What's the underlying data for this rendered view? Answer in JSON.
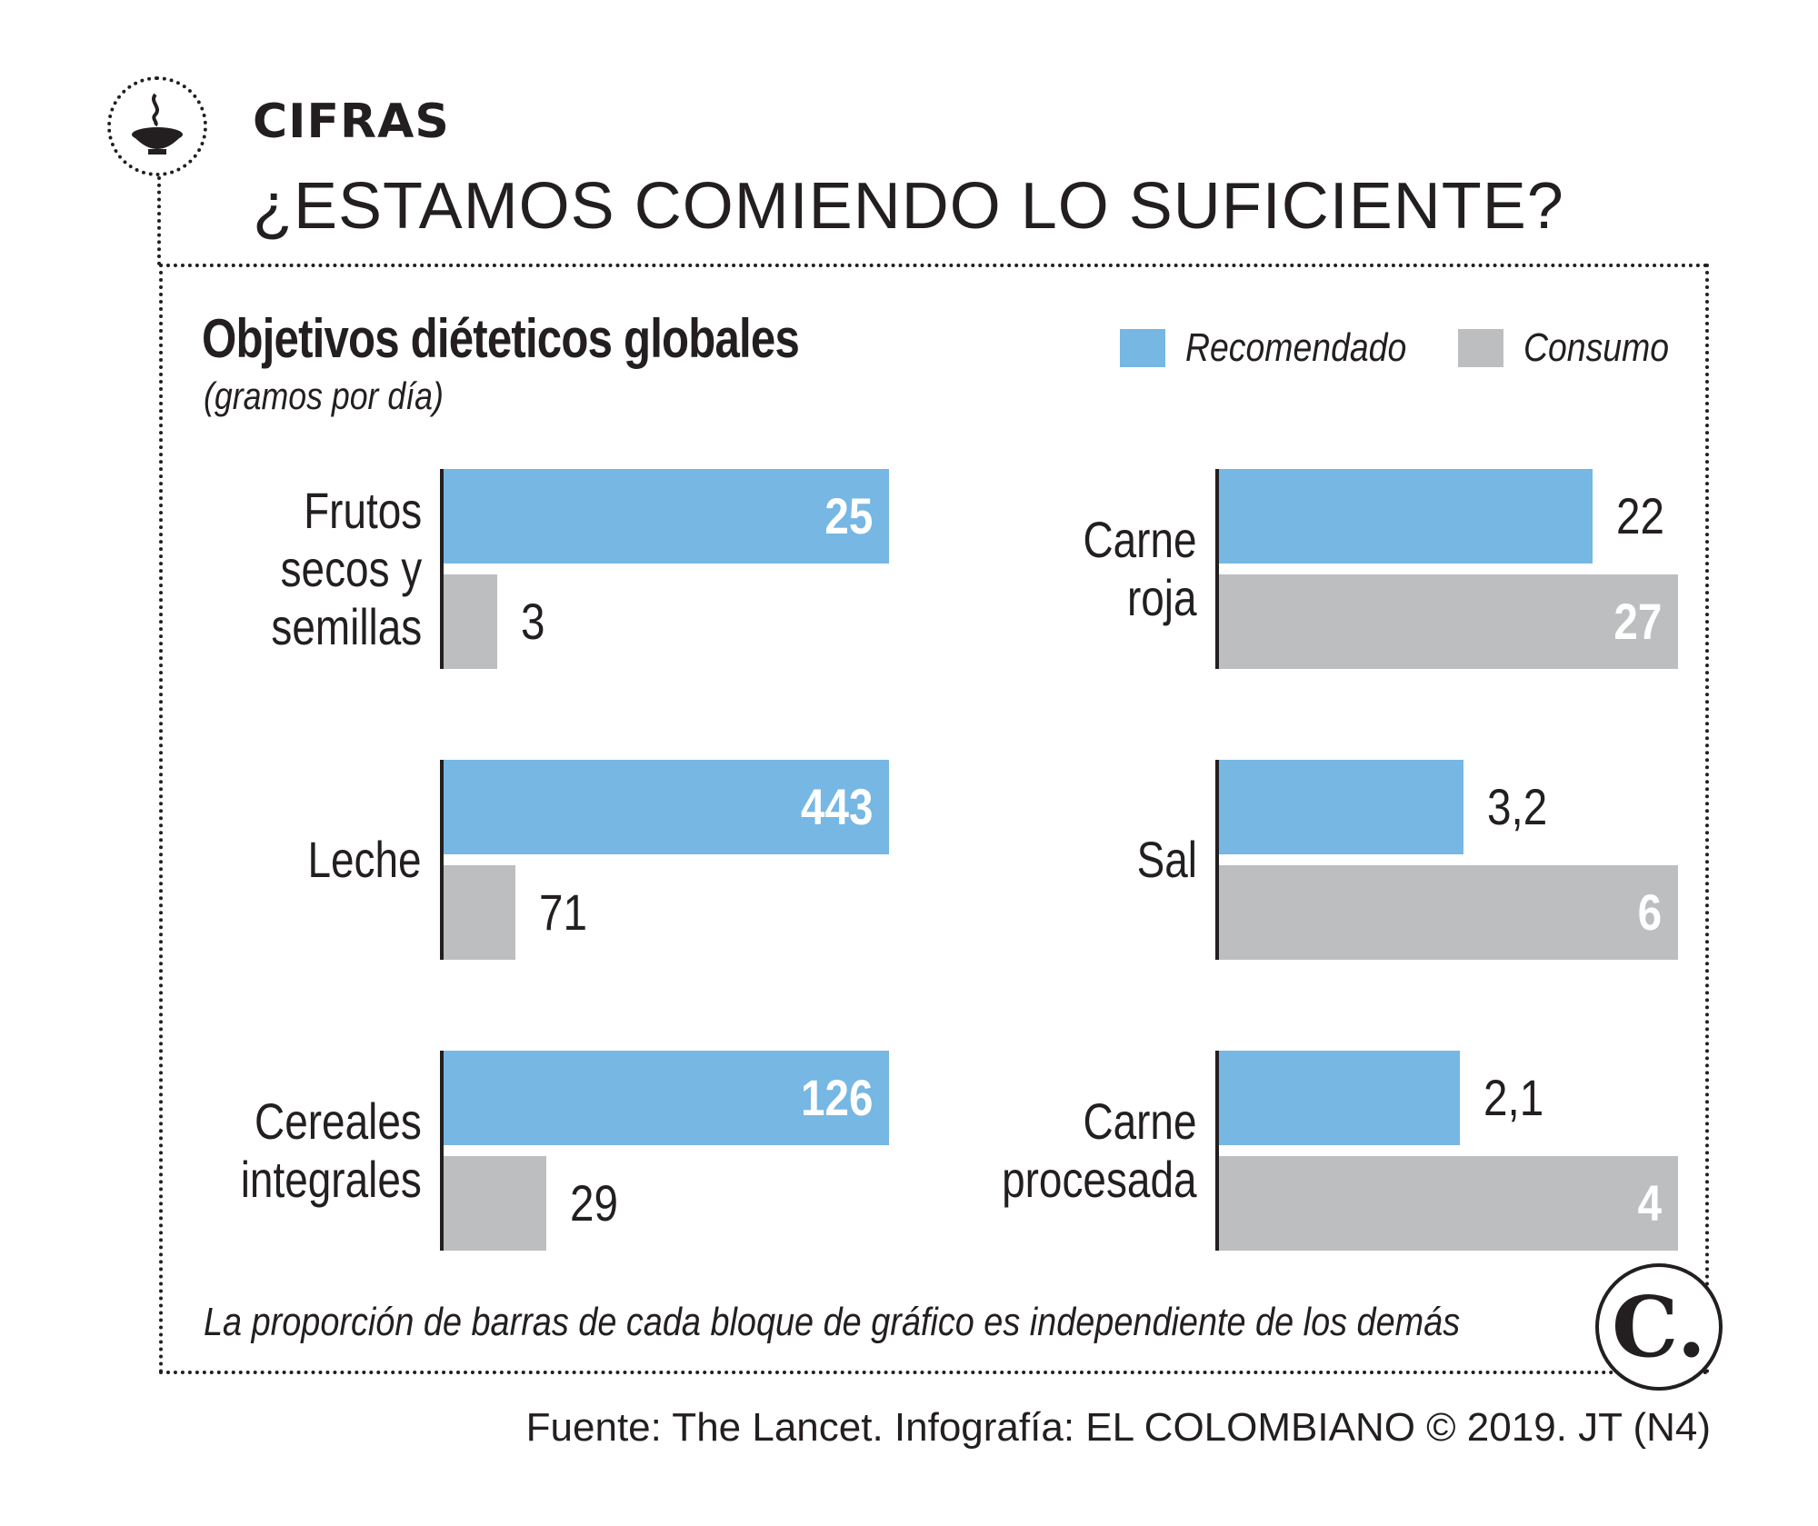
{
  "header": {
    "section_label": "CIFRAS",
    "title": "¿ESTAMOS COMIENDO LO SUFICIENTE?"
  },
  "chart_data": {
    "type": "bar",
    "orientation": "horizontal",
    "title": "Objetivos diéteticos globales",
    "subtitle": "(gramos por día)",
    "unit": "gramos por día",
    "legend": [
      {
        "name": "Recomendado",
        "color": "#76b7e3"
      },
      {
        "name": "Consumo",
        "color": "#bcbec0"
      }
    ],
    "panels": [
      {
        "category": "Frutos secos y semillas",
        "label_lines": "Frutos\nsecos y\nsemillas",
        "recomendado": 25,
        "consumo": 3,
        "recomendado_label": "25",
        "consumo_label": "3"
      },
      {
        "category": "Carne roja",
        "label_lines": "Carne\nroja",
        "recomendado": 22,
        "consumo": 27,
        "recomendado_label": "22",
        "consumo_label": "27"
      },
      {
        "category": "Leche",
        "label_lines": "Leche",
        "recomendado": 443,
        "consumo": 71,
        "recomendado_label": "443",
        "consumo_label": "71"
      },
      {
        "category": "Sal",
        "label_lines": "Sal",
        "recomendado": 3.2,
        "consumo": 6,
        "recomendado_label": "3,2",
        "consumo_label": "6"
      },
      {
        "category": "Cereales integrales",
        "label_lines": "Cereales\nintegrales",
        "recomendado": 126,
        "consumo": 29,
        "recomendado_label": "126",
        "consumo_label": "29"
      },
      {
        "category": "Carne procesada",
        "label_lines": "Carne\nprocesada",
        "recomendado": 2.1,
        "consumo": 4,
        "recomendado_label": "2,1",
        "consumo_label": "4"
      }
    ],
    "note": "La proporción de barras de cada bloque de gráfico es independiente de los demás"
  },
  "logo": {
    "letter": "C."
  },
  "source": "Fuente: The Lancet. Infografía: EL COLOMBIANO © 2019. JT (N4)",
  "icon": "steaming-bowl-icon"
}
